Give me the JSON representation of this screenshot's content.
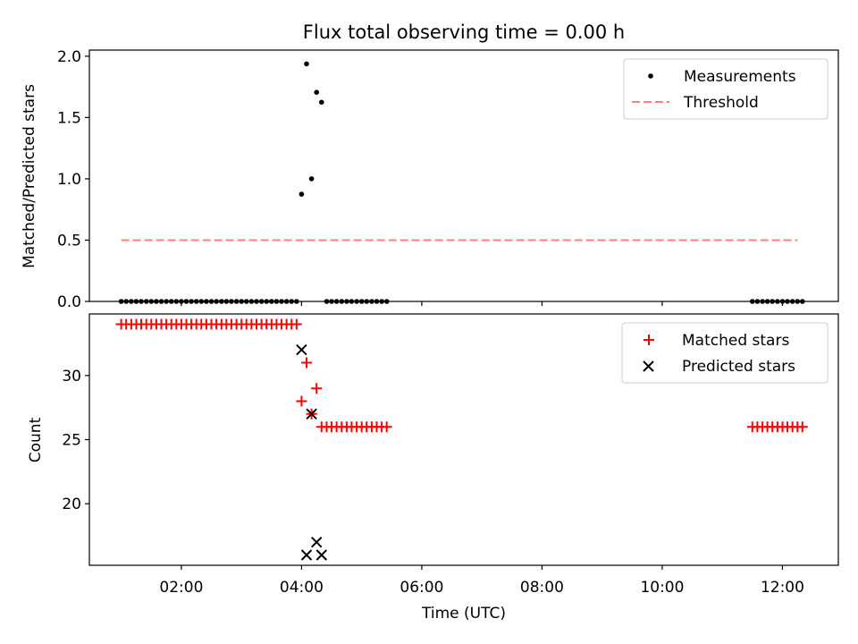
{
  "chart_data": [
    {
      "type": "scatter",
      "title": "Flux total observing time = 0.00 h",
      "xlabel": "",
      "ylabel": "Matched/Predicted stars",
      "xlim_hours": [
        0.47,
        12.93
      ],
      "ylim": [
        0.0,
        2.05
      ],
      "yticks": [
        0.0,
        0.5,
        1.0,
        1.5,
        2.0
      ],
      "ytick_labels": [
        "0.0",
        "0.5",
        "1.0",
        "1.5",
        "2.0"
      ],
      "legend_position": "top-right",
      "series": [
        {
          "name": "Measurements",
          "marker": "dot",
          "color": "#000000",
          "points": [
            [
              1.0,
              0
            ],
            [
              1.083,
              0
            ],
            [
              1.167,
              0
            ],
            [
              1.25,
              0
            ],
            [
              1.333,
              0
            ],
            [
              1.417,
              0
            ],
            [
              1.5,
              0
            ],
            [
              1.583,
              0
            ],
            [
              1.667,
              0
            ],
            [
              1.75,
              0
            ],
            [
              1.833,
              0
            ],
            [
              1.917,
              0
            ],
            [
              2.0,
              0
            ],
            [
              2.083,
              0
            ],
            [
              2.167,
              0
            ],
            [
              2.25,
              0
            ],
            [
              2.333,
              0
            ],
            [
              2.417,
              0
            ],
            [
              2.5,
              0
            ],
            [
              2.583,
              0
            ],
            [
              2.667,
              0
            ],
            [
              2.75,
              0
            ],
            [
              2.833,
              0
            ],
            [
              2.917,
              0
            ],
            [
              3.0,
              0
            ],
            [
              3.083,
              0
            ],
            [
              3.167,
              0
            ],
            [
              3.25,
              0
            ],
            [
              3.333,
              0
            ],
            [
              3.417,
              0
            ],
            [
              3.5,
              0
            ],
            [
              3.583,
              0
            ],
            [
              3.667,
              0
            ],
            [
              3.75,
              0
            ],
            [
              3.833,
              0
            ],
            [
              3.917,
              0
            ],
            [
              4.0,
              0.875
            ],
            [
              4.083,
              1.9375
            ],
            [
              4.167,
              1.0
            ],
            [
              4.25,
              1.706
            ],
            [
              4.333,
              1.625
            ],
            [
              4.417,
              0
            ],
            [
              4.5,
              0
            ],
            [
              4.583,
              0
            ],
            [
              4.667,
              0
            ],
            [
              4.75,
              0
            ],
            [
              4.833,
              0
            ],
            [
              4.917,
              0
            ],
            [
              5.0,
              0
            ],
            [
              5.083,
              0
            ],
            [
              5.167,
              0
            ],
            [
              5.25,
              0
            ],
            [
              5.333,
              0
            ],
            [
              5.417,
              0
            ],
            [
              11.5,
              0
            ],
            [
              11.583,
              0
            ],
            [
              11.667,
              0
            ],
            [
              11.75,
              0
            ],
            [
              11.833,
              0
            ],
            [
              11.917,
              0
            ],
            [
              12.0,
              0
            ],
            [
              12.083,
              0
            ],
            [
              12.167,
              0
            ],
            [
              12.25,
              0
            ],
            [
              12.333,
              0
            ]
          ]
        },
        {
          "name": "Threshold",
          "marker": "dashed-line",
          "color": "#ff7f7f",
          "points": [
            [
              1.0,
              0.5
            ],
            [
              12.25,
              0.5
            ]
          ]
        }
      ]
    },
    {
      "type": "scatter",
      "title": "",
      "xlabel": "Time (UTC)",
      "ylabel": "Count",
      "xlim_hours": [
        0.47,
        12.93
      ],
      "ylim": [
        15.2,
        34.8
      ],
      "yticks": [
        20,
        25,
        30
      ],
      "ytick_labels": [
        "20",
        "25",
        "30"
      ],
      "xticks_hours": [
        2,
        4,
        6,
        8,
        10,
        12
      ],
      "xtick_labels": [
        "02:00",
        "04:00",
        "06:00",
        "08:00",
        "10:00",
        "12:00"
      ],
      "legend_position": "top-right",
      "series": [
        {
          "name": "Matched stars",
          "marker": "plus",
          "color": "#ff0000",
          "points": [
            [
              1.0,
              34
            ],
            [
              1.083,
              34
            ],
            [
              1.167,
              34
            ],
            [
              1.25,
              34
            ],
            [
              1.333,
              34
            ],
            [
              1.417,
              34
            ],
            [
              1.5,
              34
            ],
            [
              1.583,
              34
            ],
            [
              1.667,
              34
            ],
            [
              1.75,
              34
            ],
            [
              1.833,
              34
            ],
            [
              1.917,
              34
            ],
            [
              2.0,
              34
            ],
            [
              2.083,
              34
            ],
            [
              2.167,
              34
            ],
            [
              2.25,
              34
            ],
            [
              2.333,
              34
            ],
            [
              2.417,
              34
            ],
            [
              2.5,
              34
            ],
            [
              2.583,
              34
            ],
            [
              2.667,
              34
            ],
            [
              2.75,
              34
            ],
            [
              2.833,
              34
            ],
            [
              2.917,
              34
            ],
            [
              3.0,
              34
            ],
            [
              3.083,
              34
            ],
            [
              3.167,
              34
            ],
            [
              3.25,
              34
            ],
            [
              3.333,
              34
            ],
            [
              3.417,
              34
            ],
            [
              3.5,
              34
            ],
            [
              3.583,
              34
            ],
            [
              3.667,
              34
            ],
            [
              3.75,
              34
            ],
            [
              3.833,
              34
            ],
            [
              3.917,
              34
            ],
            [
              4.0,
              28
            ],
            [
              4.083,
              31
            ],
            [
              4.167,
              27
            ],
            [
              4.25,
              29
            ],
            [
              4.333,
              26
            ],
            [
              4.417,
              26
            ],
            [
              4.5,
              26
            ],
            [
              4.583,
              26
            ],
            [
              4.667,
              26
            ],
            [
              4.75,
              26
            ],
            [
              4.833,
              26
            ],
            [
              4.917,
              26
            ],
            [
              5.0,
              26
            ],
            [
              5.083,
              26
            ],
            [
              5.167,
              26
            ],
            [
              5.25,
              26
            ],
            [
              5.333,
              26
            ],
            [
              5.417,
              26
            ],
            [
              11.5,
              26
            ],
            [
              11.583,
              26
            ],
            [
              11.667,
              26
            ],
            [
              11.75,
              26
            ],
            [
              11.833,
              26
            ],
            [
              11.917,
              26
            ],
            [
              12.0,
              26
            ],
            [
              12.083,
              26
            ],
            [
              12.167,
              26
            ],
            [
              12.25,
              26
            ],
            [
              12.333,
              26
            ]
          ]
        },
        {
          "name": "Predicted stars",
          "marker": "x",
          "color": "#000000",
          "points": [
            [
              4.0,
              32
            ],
            [
              4.083,
              16
            ],
            [
              4.167,
              27
            ],
            [
              4.25,
              17
            ],
            [
              4.333,
              16
            ]
          ]
        }
      ]
    }
  ]
}
